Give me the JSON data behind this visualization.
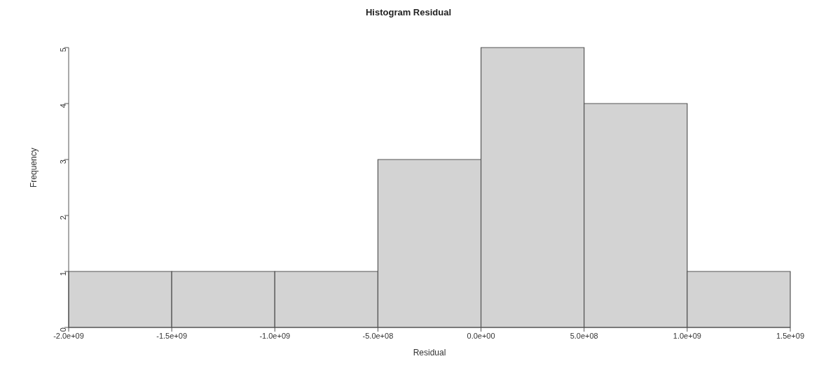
{
  "chart_data": {
    "type": "histogram",
    "title": "Histogram Residual",
    "xlabel": "Residual",
    "ylabel": "Frequency",
    "bins": [
      -2000000000,
      -1500000000,
      -1000000000,
      -500000000,
      0,
      500000000,
      1000000000,
      1500000000
    ],
    "values": [
      1,
      1,
      1,
      3,
      5,
      4,
      1
    ],
    "color": "#d3d3d3",
    "xlim": [
      -2000000000,
      1500000000
    ],
    "xticks": [
      {
        "value": -2000000000,
        "label": "-2.0e+09"
      },
      {
        "value": -1500000000,
        "label": "-1.5e+09"
      },
      {
        "value": -1000000000,
        "label": "-1.0e+09"
      },
      {
        "value": -500000000,
        "label": "-5.0e+08"
      },
      {
        "value": 0,
        "label": "0.0e+00"
      },
      {
        "value": 500000000,
        "label": "5.0e+08"
      },
      {
        "value": 1000000000,
        "label": "1.0e+09"
      },
      {
        "value": 1500000000,
        "label": "1.5e+09"
      }
    ],
    "ylim": [
      0,
      5
    ],
    "yticks": [
      0,
      1,
      2,
      3,
      4,
      5
    ],
    "grid": false
  }
}
